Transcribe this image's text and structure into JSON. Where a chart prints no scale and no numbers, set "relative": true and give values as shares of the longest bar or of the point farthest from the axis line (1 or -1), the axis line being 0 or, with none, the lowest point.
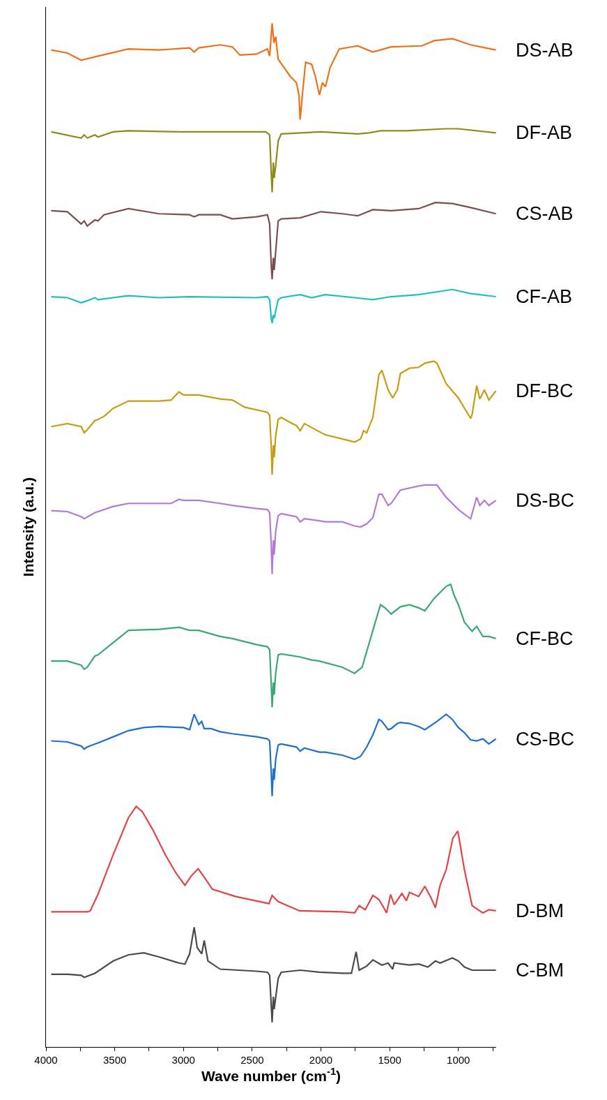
{
  "chart_data": {
    "type": "line",
    "relative": true,
    "xlabel": "Wave number (cm$^{-1}$)",
    "ylabel": "Intensity (a.u.)",
    "xlim": [
      4000,
      725
    ],
    "xticks": [
      4000,
      {
        "value": 3750,
        "label": null
      },
      3500,
      {
        "value": 3250,
        "label": null
      },
      3000,
      {
        "value": 2750,
        "label": null
      },
      2500,
      {
        "value": 2250,
        "label": null
      },
      2000,
      {
        "value": 1750,
        "label": null
      },
      1500,
      {
        "value": 1250,
        "label": null
      },
      1000,
      {
        "value": 750,
        "label": null
      }
    ],
    "grid": false,
    "legend": false,
    "marker": "none",
    "line_style": "solid",
    "series": [
      {
        "name": "DS-AB",
        "color": "#f0701a",
        "x": [
          3962,
          3844,
          3744,
          3622,
          3400,
          3178,
          2955,
          2922,
          2889,
          2733,
          2644,
          2589,
          2467,
          2389,
          2373,
          2355,
          2342,
          2329,
          2311,
          2222,
          2178,
          2160,
          2151,
          2133,
          2111,
          2067,
          2040,
          2011,
          1989,
          1967,
          1933,
          1867,
          1733,
          1622,
          1489,
          1267,
          1178,
          1044,
          911,
          727
        ],
        "values": [
          0.974,
          0.971,
          0.964,
          0.968,
          0.975,
          0.974,
          0.976,
          0.972,
          0.976,
          0.979,
          0.977,
          0.969,
          0.97,
          0.975,
          0.968,
          1.0,
          0.981,
          0.987,
          0.965,
          0.948,
          0.942,
          0.93,
          0.906,
          0.933,
          0.962,
          0.96,
          0.948,
          0.93,
          0.942,
          0.938,
          0.957,
          0.975,
          0.978,
          0.972,
          0.977,
          0.978,
          0.983,
          0.985,
          0.979,
          0.974
        ]
      },
      {
        "name": "DF-AB",
        "color": "#8c8c1a",
        "x": [
          3962,
          3744,
          3722,
          3700,
          3644,
          3622,
          3511,
          3400,
          3000,
          2400,
          2373,
          2362,
          2355,
          2346,
          2340,
          2329,
          2311,
          2289,
          2000,
          1733,
          1650,
          1567,
          1378,
          1100,
          1000,
          727
        ],
        "values": [
          0.894,
          0.888,
          0.891,
          0.888,
          0.891,
          0.889,
          0.894,
          0.895,
          0.894,
          0.894,
          0.891,
          0.855,
          0.835,
          0.864,
          0.849,
          0.861,
          0.885,
          0.892,
          0.894,
          0.892,
          0.893,
          0.895,
          0.895,
          0.897,
          0.897,
          0.893
        ]
      },
      {
        "name": "CS-AB",
        "color": "#7a4f4f",
        "x": [
          3962,
          3844,
          3744,
          3722,
          3700,
          3644,
          3622,
          3578,
          3400,
          3178,
          2955,
          2922,
          2889,
          2733,
          2644,
          2467,
          2389,
          2373,
          2362,
          2355,
          2346,
          2340,
          2329,
          2311,
          2289,
          2151,
          2000,
          1844,
          1733,
          1622,
          1489,
          1289,
          1167,
          1044,
          911,
          727
        ],
        "values": [
          0.817,
          0.816,
          0.804,
          0.807,
          0.802,
          0.808,
          0.807,
          0.813,
          0.819,
          0.814,
          0.813,
          0.811,
          0.813,
          0.813,
          0.809,
          0.811,
          0.813,
          0.804,
          0.765,
          0.75,
          0.771,
          0.759,
          0.777,
          0.807,
          0.809,
          0.81,
          0.816,
          0.814,
          0.812,
          0.818,
          0.817,
          0.819,
          0.825,
          0.824,
          0.82,
          0.814
        ]
      },
      {
        "name": "CF-AB",
        "color": "#1fbfbf",
        "x": [
          3962,
          3844,
          3744,
          3700,
          3644,
          3622,
          3400,
          3178,
          2955,
          2467,
          2389,
          2373,
          2362,
          2355,
          2346,
          2340,
          2311,
          2289,
          2151,
          2067,
          1967,
          1755,
          1622,
          1489,
          1289,
          1044,
          911,
          727
        ],
        "values": [
          0.733,
          0.732,
          0.727,
          0.729,
          0.732,
          0.73,
          0.734,
          0.732,
          0.733,
          0.732,
          0.733,
          0.73,
          0.713,
          0.707,
          0.715,
          0.712,
          0.73,
          0.732,
          0.735,
          0.732,
          0.735,
          0.732,
          0.73,
          0.733,
          0.735,
          0.74,
          0.736,
          0.733
        ]
      },
      {
        "name": "DF-BC",
        "color": "#c89b14",
        "x": [
          3962,
          3844,
          3744,
          3722,
          3700,
          3644,
          3622,
          3578,
          3511,
          3400,
          3178,
          3089,
          3033,
          3000,
          2955,
          2889,
          2733,
          2644,
          2555,
          2389,
          2373,
          2362,
          2355,
          2346,
          2340,
          2329,
          2311,
          2289,
          2222,
          2178,
          2151,
          2120,
          2011,
          1967,
          1844,
          1755,
          1711,
          1690,
          1667,
          1622,
          1578,
          1556,
          1511,
          1478,
          1444,
          1422,
          1356,
          1289,
          1244,
          1178,
          1156,
          1089,
          1000,
          911,
          900,
          867,
          844,
          811,
          778,
          727
        ],
        "values": [
          0.606,
          0.609,
          0.606,
          0.6,
          0.603,
          0.612,
          0.613,
          0.616,
          0.624,
          0.631,
          0.631,
          0.632,
          0.64,
          0.637,
          0.637,
          0.637,
          0.633,
          0.632,
          0.625,
          0.62,
          0.617,
          0.588,
          0.559,
          0.588,
          0.576,
          0.597,
          0.613,
          0.615,
          0.61,
          0.607,
          0.602,
          0.609,
          0.601,
          0.598,
          0.594,
          0.591,
          0.594,
          0.602,
          0.6,
          0.615,
          0.657,
          0.661,
          0.642,
          0.634,
          0.642,
          0.658,
          0.663,
          0.664,
          0.668,
          0.67,
          0.668,
          0.648,
          0.634,
          0.614,
          0.618,
          0.646,
          0.633,
          0.642,
          0.632,
          0.641
        ]
      },
      {
        "name": "DS-BC",
        "color": "#b07ad8",
        "x": [
          3962,
          3844,
          3744,
          3722,
          3644,
          3511,
          3400,
          3178,
          3089,
          3033,
          3000,
          2955,
          2889,
          2733,
          2644,
          2467,
          2389,
          2373,
          2362,
          2355,
          2346,
          2340,
          2329,
          2311,
          2289,
          2178,
          2151,
          2120,
          2011,
          1967,
          1844,
          1755,
          1711,
          1667,
          1622,
          1578,
          1556,
          1511,
          1489,
          1422,
          1356,
          1289,
          1244,
          1156,
          1089,
          1000,
          911,
          867,
          844,
          811,
          778,
          727
        ],
        "values": [
          0.524,
          0.523,
          0.518,
          0.516,
          0.522,
          0.528,
          0.531,
          0.531,
          0.531,
          0.535,
          0.534,
          0.534,
          0.534,
          0.531,
          0.529,
          0.526,
          0.525,
          0.522,
          0.492,
          0.462,
          0.495,
          0.481,
          0.504,
          0.519,
          0.521,
          0.518,
          0.513,
          0.516,
          0.514,
          0.513,
          0.513,
          0.509,
          0.508,
          0.511,
          0.517,
          0.54,
          0.54,
          0.529,
          0.531,
          0.544,
          0.546,
          0.548,
          0.549,
          0.549,
          0.537,
          0.525,
          0.516,
          0.537,
          0.529,
          0.534,
          0.529,
          0.534
        ]
      },
      {
        "name": "CF-BC",
        "color": "#3aa874",
        "x": [
          3962,
          3844,
          3744,
          3722,
          3700,
          3644,
          3622,
          3511,
          3400,
          3178,
          3033,
          2955,
          2889,
          2733,
          2644,
          2467,
          2389,
          2373,
          2362,
          2355,
          2346,
          2340,
          2329,
          2311,
          2289,
          2151,
          2067,
          2011,
          1844,
          1755,
          1700,
          1622,
          1567,
          1533,
          1489,
          1422,
          1356,
          1289,
          1244,
          1178,
          1089,
          1056,
          1033,
          1000,
          956,
          900,
          867,
          822,
          778,
          727
        ],
        "values": [
          0.377,
          0.377,
          0.373,
          0.369,
          0.371,
          0.382,
          0.383,
          0.395,
          0.407,
          0.408,
          0.41,
          0.407,
          0.407,
          0.401,
          0.399,
          0.393,
          0.391,
          0.388,
          0.356,
          0.332,
          0.356,
          0.344,
          0.365,
          0.383,
          0.384,
          0.381,
          0.378,
          0.377,
          0.371,
          0.365,
          0.371,
          0.407,
          0.432,
          0.429,
          0.423,
          0.43,
          0.432,
          0.429,
          0.426,
          0.438,
          0.45,
          0.452,
          0.442,
          0.432,
          0.415,
          0.406,
          0.411,
          0.401,
          0.401,
          0.399
        ]
      },
      {
        "name": "CS-BC",
        "color": "#1f6fd0",
        "x": [
          3962,
          3844,
          3744,
          3722,
          3700,
          3644,
          3622,
          3511,
          3400,
          3289,
          3178,
          3000,
          2955,
          2922,
          2889,
          2867,
          2849,
          2800,
          2733,
          2644,
          2467,
          2389,
          2373,
          2362,
          2355,
          2346,
          2340,
          2329,
          2311,
          2289,
          2178,
          2151,
          2120,
          2011,
          1967,
          1844,
          1755,
          1711,
          1667,
          1622,
          1578,
          1556,
          1511,
          1489,
          1444,
          1422,
          1356,
          1289,
          1244,
          1156,
          1089,
          1044,
          1000,
          956,
          911,
          867,
          822,
          778,
          727
        ],
        "values": [
          0.299,
          0.298,
          0.294,
          0.291,
          0.293,
          0.296,
          0.297,
          0.303,
          0.309,
          0.312,
          0.313,
          0.312,
          0.31,
          0.325,
          0.315,
          0.318,
          0.311,
          0.311,
          0.308,
          0.306,
          0.303,
          0.301,
          0.299,
          0.269,
          0.245,
          0.272,
          0.261,
          0.281,
          0.295,
          0.296,
          0.293,
          0.289,
          0.292,
          0.288,
          0.288,
          0.285,
          0.281,
          0.284,
          0.293,
          0.305,
          0.32,
          0.318,
          0.31,
          0.311,
          0.316,
          0.317,
          0.316,
          0.313,
          0.31,
          0.318,
          0.325,
          0.32,
          0.312,
          0.307,
          0.3,
          0.299,
          0.301,
          0.296,
          0.301
        ]
      },
      {
        "name": "D-BM",
        "color": "#e04444",
        "x": [
          3962,
          3844,
          3700,
          3678,
          3622,
          3511,
          3400,
          3344,
          3300,
          3222,
          3133,
          3055,
          2989,
          2944,
          2893,
          2844,
          2789,
          2622,
          2378,
          2355,
          2311,
          2156,
          1844,
          1755,
          1722,
          1678,
          1622,
          1578,
          1522,
          1493,
          1467,
          1411,
          1378,
          1356,
          1289,
          1244,
          1200,
          1167,
          1133,
          1089,
          1040,
          1004,
          956,
          900,
          822,
          778,
          727
        ],
        "values": [
          0.132,
          0.132,
          0.132,
          0.133,
          0.149,
          0.188,
          0.224,
          0.235,
          0.23,
          0.212,
          0.188,
          0.17,
          0.158,
          0.167,
          0.174,
          0.165,
          0.154,
          0.147,
          0.14,
          0.148,
          0.142,
          0.133,
          0.132,
          0.131,
          0.138,
          0.134,
          0.148,
          0.144,
          0.131,
          0.149,
          0.139,
          0.15,
          0.143,
          0.151,
          0.147,
          0.157,
          0.146,
          0.136,
          0.158,
          0.173,
          0.204,
          0.211,
          0.173,
          0.138,
          0.131,
          0.134,
          0.133
        ]
      },
      {
        "name": "C-BM",
        "color": "#4a4a4a",
        "x": [
          3962,
          3844,
          3744,
          3722,
          3644,
          3511,
          3400,
          3289,
          3178,
          3033,
          2989,
          2955,
          2922,
          2900,
          2867,
          2849,
          2822,
          2733,
          2467,
          2389,
          2373,
          2355,
          2346,
          2340,
          2311,
          2289,
          2151,
          2011,
          1844,
          1778,
          1744,
          1722,
          1667,
          1622,
          1556,
          1511,
          1478,
          1467,
          1356,
          1289,
          1222,
          1167,
          1133,
          1044,
          1000,
          956,
          900,
          822,
          727
        ],
        "values": [
          0.071,
          0.071,
          0.07,
          0.068,
          0.072,
          0.084,
          0.09,
          0.092,
          0.088,
          0.082,
          0.081,
          0.091,
          0.117,
          0.097,
          0.091,
          0.104,
          0.084,
          0.076,
          0.074,
          0.073,
          0.07,
          0.024,
          0.049,
          0.037,
          0.067,
          0.073,
          0.075,
          0.073,
          0.072,
          0.072,
          0.093,
          0.075,
          0.079,
          0.085,
          0.08,
          0.082,
          0.076,
          0.082,
          0.08,
          0.081,
          0.078,
          0.084,
          0.082,
          0.087,
          0.084,
          0.078,
          0.075,
          0.075,
          0.075
        ]
      }
    ]
  }
}
